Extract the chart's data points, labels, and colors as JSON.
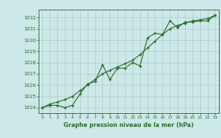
{
  "title": "Graphe pression niveau de la mer (hPa)",
  "background_color": "#cce8e8",
  "grid_color": "#b0cccc",
  "line_color": "#2d6e2d",
  "xlim": [
    -0.5,
    23.5
  ],
  "ylim": [
    1023.5,
    1032.7
  ],
  "yticks": [
    1024,
    1025,
    1026,
    1027,
    1028,
    1029,
    1030,
    1031,
    1032
  ],
  "xticks": [
    0,
    1,
    2,
    3,
    4,
    5,
    6,
    7,
    8,
    9,
    10,
    11,
    12,
    13,
    14,
    15,
    16,
    17,
    18,
    19,
    20,
    21,
    22,
    23
  ],
  "series1_x": [
    0,
    1,
    2,
    3,
    4,
    5,
    6,
    7,
    8,
    9,
    10,
    11,
    12,
    13,
    14,
    15,
    16,
    17,
    18,
    19,
    20,
    21,
    22,
    23
  ],
  "series1_y": [
    1024.0,
    1024.2,
    1024.2,
    1024.0,
    1024.2,
    1025.2,
    1026.1,
    1026.3,
    1027.8,
    1026.5,
    1027.5,
    1027.5,
    1028.0,
    1027.7,
    1030.2,
    1030.6,
    1030.5,
    1031.7,
    1031.1,
    1031.6,
    1031.6,
    1031.7,
    1031.7,
    1032.2
  ],
  "series2_x": [
    0,
    1,
    2,
    3,
    4,
    5,
    6,
    7,
    8,
    9,
    10,
    11,
    12,
    13,
    14,
    15,
    16,
    17,
    18,
    19,
    20,
    21,
    22,
    23
  ],
  "series2_y": [
    1024.0,
    1024.3,
    1024.5,
    1024.7,
    1025.0,
    1025.5,
    1026.0,
    1026.5,
    1027.0,
    1027.3,
    1027.6,
    1027.9,
    1028.2,
    1028.7,
    1029.3,
    1029.9,
    1030.5,
    1031.0,
    1031.3,
    1031.5,
    1031.7,
    1031.8,
    1031.9,
    1032.2
  ]
}
